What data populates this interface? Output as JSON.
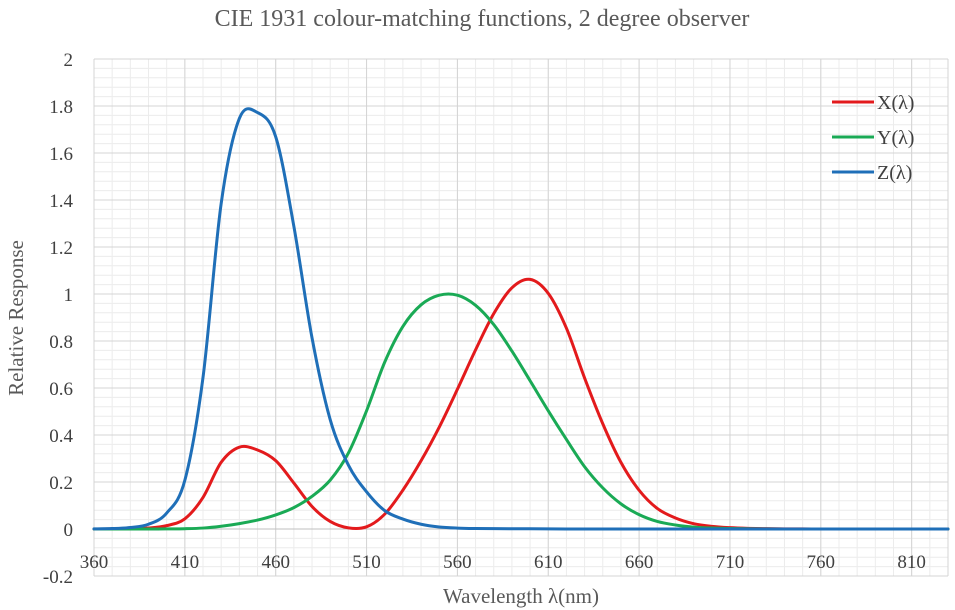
{
  "chart_data": {
    "type": "line",
    "title": "CIE 1931 colour-matching functions, 2 degree observer",
    "xlabel": "Wavelength λ(nm)",
    "ylabel": "Relative Response",
    "xlim": [
      360,
      830
    ],
    "ylim": [
      -0.2,
      2
    ],
    "x_ticks": [
      "360",
      "410",
      "460",
      "510",
      "560",
      "610",
      "660",
      "710",
      "760",
      "810"
    ],
    "y_ticks": [
      "-0.2",
      "0",
      "0.2",
      "0.4",
      "0.6",
      "0.8",
      "1",
      "1.2",
      "1.4",
      "1.6",
      "1.8",
      "2"
    ],
    "grid": true,
    "legend_position": "top-right",
    "x": [
      360,
      370,
      380,
      390,
      400,
      410,
      420,
      430,
      440,
      450,
      460,
      470,
      480,
      490,
      500,
      510,
      520,
      530,
      540,
      550,
      560,
      570,
      580,
      590,
      600,
      610,
      620,
      630,
      640,
      650,
      660,
      670,
      680,
      690,
      700,
      710,
      720,
      730,
      740,
      750,
      760,
      770,
      780,
      790,
      800,
      810,
      820,
      830
    ],
    "series": [
      {
        "name": "X(λ)",
        "color": "#e31a1c",
        "values": [
          0.0001,
          0.0004,
          0.0014,
          0.0042,
          0.0143,
          0.0435,
          0.1344,
          0.2839,
          0.3483,
          0.3362,
          0.2908,
          0.1954,
          0.0956,
          0.032,
          0.0049,
          0.0093,
          0.0633,
          0.1655,
          0.2904,
          0.4334,
          0.5945,
          0.7621,
          0.9163,
          1.0263,
          1.0622,
          1.0026,
          0.8544,
          0.6424,
          0.4479,
          0.2835,
          0.1649,
          0.0874,
          0.0468,
          0.0227,
          0.0114,
          0.0058,
          0.0029,
          0.0014,
          0.0007,
          0.0003,
          0.0002,
          0.0001,
          0.0,
          0.0,
          0.0,
          0.0,
          0.0,
          0.0
        ]
      },
      {
        "name": "Y(λ)",
        "color": "#1aaa55",
        "values": [
          0.0,
          0.0,
          0.0,
          0.0001,
          0.0004,
          0.0012,
          0.004,
          0.0116,
          0.023,
          0.038,
          0.06,
          0.091,
          0.139,
          0.208,
          0.323,
          0.503,
          0.71,
          0.862,
          0.954,
          0.995,
          0.995,
          0.952,
          0.87,
          0.757,
          0.631,
          0.503,
          0.381,
          0.265,
          0.175,
          0.107,
          0.061,
          0.032,
          0.017,
          0.0082,
          0.0041,
          0.0021,
          0.001,
          0.0005,
          0.0002,
          0.0001,
          0.0001,
          0.0,
          0.0,
          0.0,
          0.0,
          0.0,
          0.0,
          0.0
        ]
      },
      {
        "name": "Z(λ)",
        "color": "#1f6fb8",
        "values": [
          0.0006,
          0.0019,
          0.0065,
          0.0201,
          0.0679,
          0.2074,
          0.6456,
          1.3856,
          1.747,
          1.7721,
          1.6692,
          1.2876,
          0.813,
          0.4652,
          0.272,
          0.1582,
          0.0782,
          0.0422,
          0.0203,
          0.0087,
          0.0039,
          0.0021,
          0.0017,
          0.0011,
          0.0008,
          0.0003,
          0.0002,
          0.0,
          0.0,
          0.0,
          0.0,
          0.0,
          0.0,
          0.0,
          0.0,
          0.0,
          0.0,
          0.0,
          0.0,
          0.0,
          0.0,
          0.0,
          0.0,
          0.0,
          0.0,
          0.0,
          0.0,
          0.0
        ]
      }
    ]
  }
}
